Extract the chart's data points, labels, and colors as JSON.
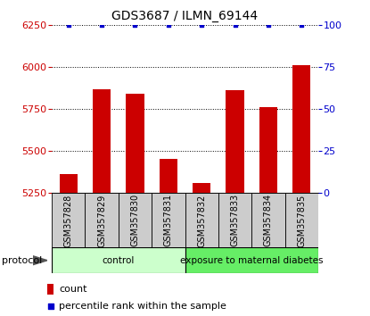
{
  "title": "GDS3687 / ILMN_69144",
  "samples": [
    "GSM357828",
    "GSM357829",
    "GSM357830",
    "GSM357831",
    "GSM357832",
    "GSM357833",
    "GSM357834",
    "GSM357835"
  ],
  "counts": [
    5360,
    5870,
    5840,
    5450,
    5310,
    5860,
    5760,
    6010
  ],
  "percentile_ranks": [
    100,
    100,
    100,
    100,
    100,
    100,
    100,
    100
  ],
  "ylim_left": [
    5250,
    6250
  ],
  "ylim_right": [
    0,
    100
  ],
  "yticks_left": [
    5250,
    5500,
    5750,
    6000,
    6250
  ],
  "yticks_right": [
    0,
    25,
    50,
    75,
    100
  ],
  "bar_color": "#cc0000",
  "dot_color": "#0000cc",
  "bar_bottom": 5250,
  "groups": [
    {
      "label": "control",
      "start": 0,
      "end": 4,
      "color": "#ccffcc"
    },
    {
      "label": "exposure to maternal diabetes",
      "start": 4,
      "end": 8,
      "color": "#66ee66"
    }
  ],
  "protocol_label": "protocol",
  "legend_items": [
    {
      "color": "#cc0000",
      "label": "count"
    },
    {
      "color": "#0000cc",
      "label": "percentile rank within the sample"
    }
  ],
  "sample_area_color": "#cccccc",
  "left_tick_color": "#cc0000",
  "right_tick_color": "#0000cc",
  "title_fontsize": 10,
  "tick_fontsize": 8,
  "label_fontsize": 7
}
